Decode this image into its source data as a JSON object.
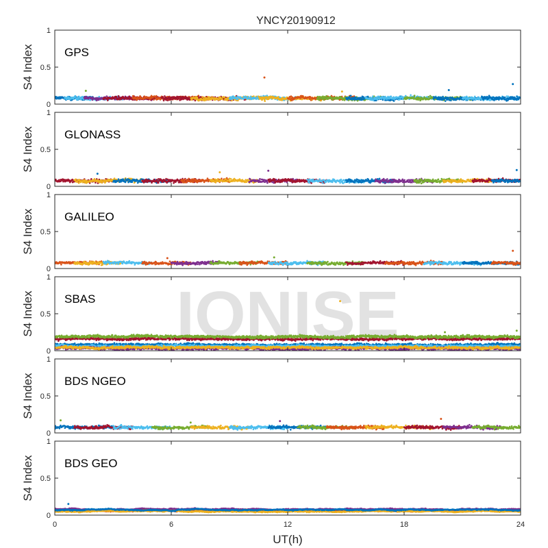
{
  "chart_data": {
    "type": "scatter",
    "title": "YNCY20190912",
    "xlabel": "UT(h)",
    "xlim": [
      0,
      24
    ],
    "xticks": [
      "0",
      "6",
      "12",
      "18",
      "24"
    ],
    "watermark": "IONISE",
    "colors": [
      "#0072BD",
      "#D95319",
      "#EDB120",
      "#7E2F8E",
      "#77AC30",
      "#4DBEEE",
      "#A2142F"
    ],
    "panels": [
      {
        "name": "GPS",
        "ylabel": "S4 Index",
        "ylim": [
          0,
          1
        ],
        "yticks": [
          "0",
          "0.5",
          "1"
        ],
        "series_segments": [
          [
            0.0,
            2.0,
            0.0
          ],
          [
            0.5,
            3.5,
            5.0
          ],
          [
            1.5,
            5.0,
            3.0
          ],
          [
            2.5,
            6.0,
            6.0
          ],
          [
            4.0,
            8.0,
            1.0
          ],
          [
            5.5,
            10.0,
            6.0
          ],
          [
            7.0,
            11.0,
            2.0
          ],
          [
            9.0,
            12.5,
            5.0
          ],
          [
            10.5,
            14.0,
            2.0
          ],
          [
            12.0,
            15.5,
            1.0
          ],
          [
            13.5,
            17.0,
            4.0
          ],
          [
            15.0,
            18.0,
            0.0
          ],
          [
            16.0,
            20.0,
            5.0
          ],
          [
            18.0,
            21.5,
            4.0
          ],
          [
            19.5,
            23.0,
            0.0
          ],
          [
            21.0,
            24.0,
            5.0
          ],
          [
            22.0,
            24.0,
            0.0
          ]
        ],
        "base_level": 0.08,
        "spread": 0.035,
        "outliers": [
          [
            10.8,
            0.36,
            1
          ],
          [
            23.6,
            0.27,
            0
          ],
          [
            1.6,
            0.18,
            4
          ],
          [
            14.8,
            0.17,
            2
          ],
          [
            20.3,
            0.19,
            0
          ]
        ]
      },
      {
        "name": "GLONASS",
        "ylabel": "S4 Index",
        "ylim": [
          0,
          1
        ],
        "yticks": [
          "0",
          "0.5",
          "1"
        ],
        "series_segments": [
          [
            0.0,
            3.0,
            6.0
          ],
          [
            1.0,
            4.5,
            2.0
          ],
          [
            3.0,
            6.0,
            0.0
          ],
          [
            4.5,
            7.5,
            6.0
          ],
          [
            6.5,
            9.0,
            1.0
          ],
          [
            8.0,
            10.5,
            2.0
          ],
          [
            10.0,
            12.5,
            3.0
          ],
          [
            11.0,
            14.0,
            6.0
          ],
          [
            13.0,
            16.0,
            5.0
          ],
          [
            15.0,
            17.5,
            0.0
          ],
          [
            16.5,
            19.5,
            3.0
          ],
          [
            18.5,
            21.0,
            4.0
          ],
          [
            20.0,
            22.5,
            2.0
          ],
          [
            21.5,
            24.0,
            6.0
          ],
          [
            22.5,
            24.0,
            0.0
          ]
        ],
        "base_level": 0.075,
        "spread": 0.035,
        "outliers": [
          [
            11.0,
            0.21,
            3
          ],
          [
            8.5,
            0.19,
            2
          ],
          [
            23.8,
            0.22,
            0
          ],
          [
            2.2,
            0.17,
            0
          ]
        ]
      },
      {
        "name": "GALILEO",
        "ylabel": "S4 Index",
        "ylim": [
          0,
          1
        ],
        "yticks": [
          "0",
          "0.5",
          "1"
        ],
        "series_segments": [
          [
            0.0,
            2.5,
            1.0
          ],
          [
            1.0,
            3.5,
            2.0
          ],
          [
            2.5,
            5.0,
            5.0
          ],
          [
            4.5,
            7.0,
            1.0
          ],
          [
            6.0,
            8.5,
            3.0
          ],
          [
            8.0,
            10.5,
            4.0
          ],
          [
            9.5,
            12.0,
            1.0
          ],
          [
            11.0,
            14.0,
            5.0
          ],
          [
            13.0,
            16.0,
            4.0
          ],
          [
            15.0,
            18.0,
            6.0
          ],
          [
            17.0,
            20.0,
            1.0
          ],
          [
            19.0,
            22.0,
            5.0
          ],
          [
            21.0,
            24.0,
            0.0
          ],
          [
            22.5,
            24.0,
            1.0
          ]
        ],
        "base_level": 0.075,
        "spread": 0.03,
        "outliers": [
          [
            23.6,
            0.24,
            1
          ],
          [
            5.8,
            0.14,
            1
          ],
          [
            11.3,
            0.15,
            4
          ]
        ]
      },
      {
        "name": "SBAS",
        "ylabel": "S4 Index",
        "ylim": [
          0,
          1
        ],
        "yticks": [
          "0",
          "0.5",
          "1"
        ],
        "series_segments": [
          [
            0.0,
            24.0,
            6.0
          ],
          [
            0.0,
            24.0,
            4.0
          ],
          [
            0.0,
            24.0,
            0.0
          ],
          [
            0.0,
            24.0,
            5.0
          ],
          [
            0.0,
            24.0,
            3.0
          ],
          [
            0.0,
            24.0,
            2.0
          ]
        ],
        "series_levels": [
          0.16,
          0.19,
          0.08,
          0.06,
          0.03,
          0.04
        ],
        "spread": 0.025,
        "outliers": [
          [
            14.7,
            0.67,
            2
          ],
          [
            23.8,
            0.27,
            4
          ],
          [
            20.1,
            0.25,
            4
          ]
        ]
      },
      {
        "name": "BDS NGEO",
        "ylabel": "S4 Index",
        "ylim": [
          0,
          1
        ],
        "yticks": [
          "0",
          "0.5",
          "1"
        ],
        "series_segments": [
          [
            0.0,
            3.0,
            0.0
          ],
          [
            1.0,
            4.0,
            6.0
          ],
          [
            3.0,
            6.0,
            5.0
          ],
          [
            5.0,
            8.0,
            4.0
          ],
          [
            7.0,
            10.0,
            2.0
          ],
          [
            9.0,
            12.0,
            5.0
          ],
          [
            11.0,
            14.0,
            0.0
          ],
          [
            12.5,
            15.5,
            4.0
          ],
          [
            14.0,
            17.0,
            1.0
          ],
          [
            16.0,
            19.5,
            2.0
          ],
          [
            18.0,
            21.0,
            6.0
          ],
          [
            20.0,
            23.0,
            3.0
          ],
          [
            21.5,
            24.0,
            4.0
          ]
        ],
        "base_level": 0.075,
        "spread": 0.03,
        "outliers": [
          [
            0.3,
            0.17,
            4
          ],
          [
            11.6,
            0.16,
            3
          ],
          [
            19.9,
            0.19,
            1
          ],
          [
            7.0,
            0.14,
            4
          ]
        ]
      },
      {
        "name": "BDS GEO",
        "ylabel": "S4 Index",
        "ylim": [
          0,
          1
        ],
        "yticks": [
          "0",
          "0.5",
          "1"
        ],
        "series_segments": [
          [
            0.0,
            24.0,
            3.0
          ],
          [
            0.0,
            24.0,
            1.0
          ],
          [
            0.0,
            24.0,
            2.0
          ],
          [
            0.0,
            24.0,
            0.0
          ]
        ],
        "series_levels": [
          0.08,
          0.06,
          0.05,
          0.07
        ],
        "spread": 0.008,
        "outliers": [
          [
            0.7,
            0.15,
            0
          ]
        ]
      }
    ]
  }
}
